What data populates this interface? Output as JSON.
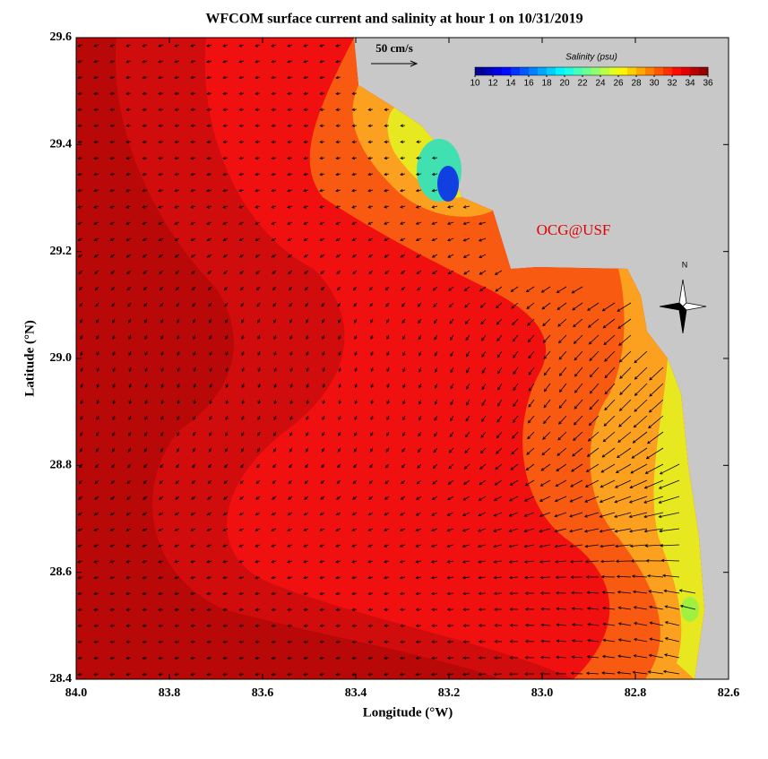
{
  "chart_data": {
    "type": "map",
    "title": "WFCOM surface current and salinity at hour 1 on 10/31/2019",
    "xlabel": "Longitude (°W)",
    "ylabel": "Latitude (°N)",
    "xlim": [
      84.0,
      82.6
    ],
    "ylim": [
      28.4,
      29.6
    ],
    "xticks": [
      {
        "value": 84,
        "label": "84.0"
      },
      83.8,
      83.6,
      83.4,
      83.2,
      {
        "value": 83,
        "label": "83.0"
      },
      82.8,
      82.6
    ],
    "yticks": [
      28.4,
      28.6,
      28.8,
      {
        "value": 29,
        "label": "29.0"
      },
      29.2,
      29.4,
      29.6
    ],
    "colorbar": {
      "title": "Salinity (psu)",
      "lim": [
        10,
        36
      ],
      "ticks": [
        10,
        12,
        14,
        16,
        18,
        20,
        22,
        24,
        26,
        28,
        30,
        32,
        34,
        36
      ]
    },
    "scale_label": "50 cm/s",
    "credit": "OCG@USF",
    "north_label": "N"
  }
}
